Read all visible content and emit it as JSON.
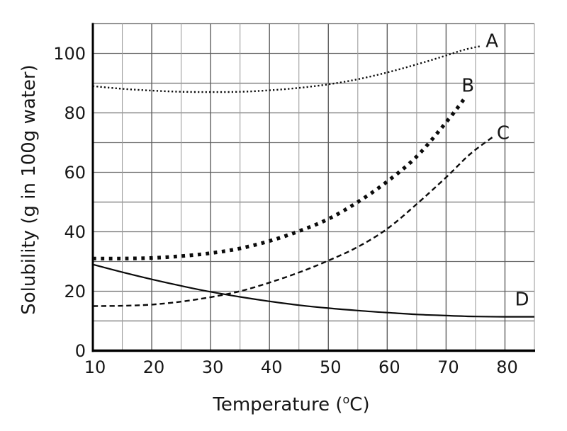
{
  "chart_data": {
    "type": "line",
    "title": "",
    "xlabel": "Temperature (°C)",
    "xlabel_parts": {
      "base": "Temperature (",
      "sup": "o",
      "rest": "C)"
    },
    "ylabel": "Solubility (g in 100g water)",
    "xlim": [
      10,
      85
    ],
    "ylim": [
      0,
      110
    ],
    "xticks": [
      10,
      20,
      30,
      40,
      50,
      60,
      70,
      80
    ],
    "yticks": [
      0,
      20,
      40,
      60,
      80,
      100
    ],
    "x_minor_step": 5,
    "y_grid_step": 10,
    "grid": true,
    "legend": "inline-curve-labels",
    "colors": {
      "curve": "#0b0b0b",
      "axis": "#000000",
      "grid_h": "#6f6f6f",
      "grid_major": "#5f5f5f",
      "grid_minor": "#9e9e9e",
      "text": "#161616",
      "background": "#ffffff"
    },
    "series": [
      {
        "name": "A",
        "label": "A",
        "style": "dotted-fine",
        "label_at": [
          77.8,
          104.3
        ],
        "points": [
          [
            10,
            89
          ],
          [
            15,
            88.1
          ],
          [
            20,
            87.5
          ],
          [
            25,
            87.1
          ],
          [
            30,
            87
          ],
          [
            35,
            87.1
          ],
          [
            40,
            87.6
          ],
          [
            45,
            88.4
          ],
          [
            50,
            89.6
          ],
          [
            55,
            91.3
          ],
          [
            60,
            93.6
          ],
          [
            65,
            96.3
          ],
          [
            70,
            99.3
          ],
          [
            73,
            101.2
          ],
          [
            76,
            102.5
          ]
        ]
      },
      {
        "name": "B",
        "label": "B",
        "style": "dotted-bold",
        "label_at": [
          73.7,
          89.3
        ],
        "points": [
          [
            10,
            31
          ],
          [
            15,
            31
          ],
          [
            20,
            31.2
          ],
          [
            25,
            31.8
          ],
          [
            30,
            32.8
          ],
          [
            35,
            34.4
          ],
          [
            40,
            36.9
          ],
          [
            45,
            40.2
          ],
          [
            50,
            44.3
          ],
          [
            55,
            50
          ],
          [
            60,
            56.9
          ],
          [
            65,
            65.3
          ],
          [
            70,
            76.8
          ],
          [
            73,
            84.5
          ]
        ]
      },
      {
        "name": "C",
        "label": "C",
        "style": "dashed",
        "label_at": [
          79.7,
          73.3
        ],
        "points": [
          [
            10,
            15
          ],
          [
            15,
            15.1
          ],
          [
            20,
            15.5
          ],
          [
            25,
            16.5
          ],
          [
            30,
            18
          ],
          [
            35,
            20
          ],
          [
            40,
            22.9
          ],
          [
            45,
            26.3
          ],
          [
            50,
            30.3
          ],
          [
            55,
            34.9
          ],
          [
            60,
            41
          ],
          [
            65,
            49.3
          ],
          [
            70,
            58.3
          ],
          [
            74,
            66
          ],
          [
            78,
            72
          ]
        ]
      },
      {
        "name": "D",
        "label": "D",
        "style": "solid",
        "label_at": [
          82.9,
          17.4
        ],
        "points": [
          [
            10,
            29
          ],
          [
            15,
            26.4
          ],
          [
            20,
            24
          ],
          [
            25,
            21.8
          ],
          [
            30,
            19.8
          ],
          [
            35,
            18.1
          ],
          [
            40,
            16.6
          ],
          [
            45,
            15.3
          ],
          [
            50,
            14.3
          ],
          [
            55,
            13.5
          ],
          [
            60,
            12.8
          ],
          [
            65,
            12.2
          ],
          [
            70,
            11.8
          ],
          [
            75,
            11.5
          ],
          [
            80,
            11.4
          ],
          [
            85,
            11.4
          ]
        ]
      }
    ]
  }
}
